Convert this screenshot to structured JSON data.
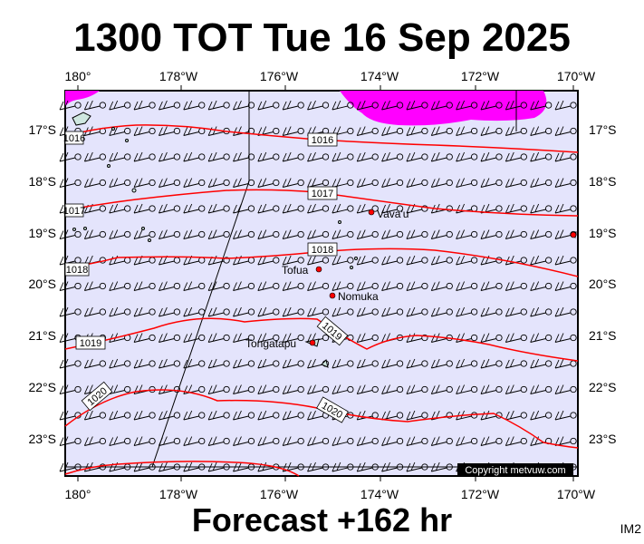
{
  "header": {
    "title": "1300 TOT Tue 16 Sep 2025"
  },
  "footer": {
    "subtitle": "Forecast +162 hr",
    "code": "IM2"
  },
  "map": {
    "credit": "Copyright metvuw.com",
    "lon_ticks": [
      "180°",
      "178°W",
      "176°W",
      "174°W",
      "172°W",
      "170°W"
    ],
    "lat_ticks": [
      "17°S",
      "18°S",
      "19°S",
      "20°S",
      "21°S",
      "22°S",
      "23°S"
    ],
    "places": [
      {
        "name": "Vava'u"
      },
      {
        "name": "Tofua"
      },
      {
        "name": "Nomuka"
      },
      {
        "name": "Tongatapu"
      }
    ],
    "isobars": [
      "1016",
      "1017",
      "1018",
      "1019",
      "1020"
    ],
    "colors": {
      "ocean": "#e4e4fc",
      "rain": "#ff00ff",
      "isobar": "#ff0000",
      "city": "#ff0000"
    }
  }
}
